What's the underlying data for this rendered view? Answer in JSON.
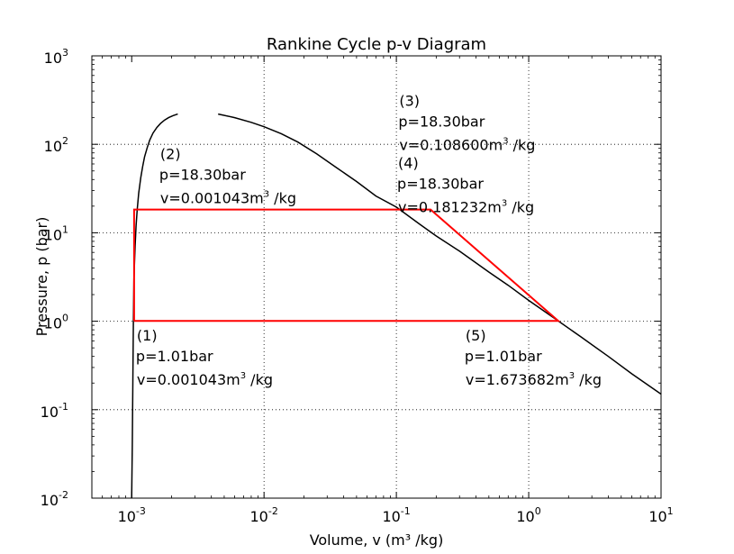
{
  "chart_data": {
    "type": "line",
    "title": "Rankine Cycle p-v Diagram",
    "xlabel": "Volume, v (m³ /kg)",
    "ylabel": "Pressure, p (bar)",
    "xscale": "log",
    "yscale": "log",
    "xlim": [
      0.0005,
      10
    ],
    "ylim": [
      0.01,
      1000
    ],
    "grid": true,
    "x_ticks": [
      {
        "base": "10",
        "exp": "-3",
        "value": 0.001
      },
      {
        "base": "10",
        "exp": "-2",
        "value": 0.01
      },
      {
        "base": "10",
        "exp": "-1",
        "value": 0.1
      },
      {
        "base": "10",
        "exp": "0",
        "value": 1
      },
      {
        "base": "10",
        "exp": "1",
        "value": 10
      }
    ],
    "y_ticks": [
      {
        "base": "10",
        "exp": "-2",
        "value": 0.01
      },
      {
        "base": "10",
        "exp": "-1",
        "value": 0.1
      },
      {
        "base": "10",
        "exp": "0",
        "value": 1
      },
      {
        "base": "10",
        "exp": "1",
        "value": 10
      },
      {
        "base": "10",
        "exp": "2",
        "value": 100
      },
      {
        "base": "10",
        "exp": "3",
        "value": 1000
      }
    ],
    "series": [
      {
        "color": "#000000",
        "segments": [
          {
            "x": [
              0.001,
              0.00101,
              0.00102,
              0.00103,
              0.00104,
              0.00106,
              0.00108,
              0.0011,
              0.00113,
              0.00117,
              0.00121,
              0.00125,
              0.00131,
              0.00137,
              0.00145,
              0.00155,
              0.00165,
              0.00177,
              0.0019,
              0.00205,
              0.00223
            ],
            "y": [
              0.01,
              0.04,
              0.2,
              1.0,
              3.0,
              7.0,
              12.0,
              18.0,
              28.0,
              42.0,
              56.0,
              72.0,
              92.0,
              112.0,
              134.0,
              155.0,
              172.0,
              188.0,
              200.0,
              211.0,
              220.0
            ]
          },
          {
            "x": [
              0.0045,
              0.006,
              0.008,
              0.01,
              0.0135,
              0.018,
              0.025,
              0.035,
              0.05,
              0.07,
              0.1,
              0.15,
              0.2,
              0.3,
              0.5,
              0.7,
              1.0,
              1.67,
              2.5,
              4.0,
              6.0,
              10.0
            ],
            "y": [
              220.0,
              200.0,
              177.0,
              158.0,
              132.0,
              106.0,
              78.0,
              55.0,
              38.0,
              26.0,
              19.5,
              12.5,
              9.2,
              6.2,
              3.6,
              2.55,
              1.72,
              1.01,
              0.66,
              0.4,
              0.255,
              0.15
            ]
          }
        ]
      },
      {
        "color": "#ff0000",
        "segments": [
          {
            "x": [
              0.001043,
              0.001043,
              0.1086,
              0.181232,
              1.673682,
              0.001043
            ],
            "y": [
              1.01,
              18.3,
              18.3,
              18.3,
              1.01,
              1.01
            ]
          }
        ]
      }
    ],
    "annotations": [
      {
        "num": "(1)",
        "p": "p=1.01bar",
        "v": "v=0.001043m",
        "v_unit_exp": "3",
        "v_suffix": " /kg",
        "x": 0.001043,
        "y": 1.01,
        "anchor": "below"
      },
      {
        "num": "(2)",
        "p": "p=18.30bar",
        "v": "v=0.001043m",
        "v_unit_exp": "3",
        "v_suffix": " /kg",
        "x": 0.001043,
        "y": 18.3,
        "anchor": "above-right"
      },
      {
        "num": "(3)",
        "p": "p=18.30bar",
        "v": "v=0.108600m",
        "v_unit_exp": "3",
        "v_suffix": " /kg",
        "x": 0.1086,
        "y": 18.3,
        "anchor": "above-high"
      },
      {
        "num": "(4)",
        "p": "p=18.30bar",
        "v": "v=0.181232m",
        "v_unit_exp": "3",
        "v_suffix": " /kg",
        "x": 0.181232,
        "y": 18.3,
        "anchor": "above"
      },
      {
        "num": "(5)",
        "p": "p=1.01bar",
        "v": "v=1.673682m",
        "v_unit_exp": "3",
        "v_suffix": " /kg",
        "x": 1.673682,
        "y": 1.01,
        "anchor": "below-left"
      }
    ]
  }
}
